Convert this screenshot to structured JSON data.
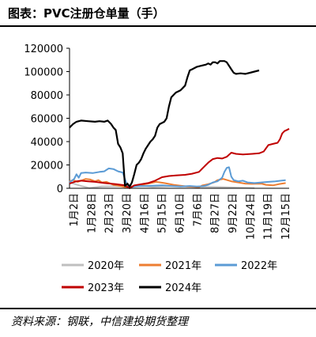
{
  "header": {
    "title": "图表：PVC注册仓单量（手）"
  },
  "footer": {
    "source": "资料来源：钢联，中信建投期货整理"
  },
  "chart_data": {
    "type": "line",
    "title": "图表：PVC注册仓单量（手）",
    "ylim": [
      0,
      120000
    ],
    "yticks": [
      0,
      20000,
      40000,
      60000,
      80000,
      100000,
      120000
    ],
    "x_ticks": [
      "1月2日",
      "1月28日",
      "2月23日",
      "3月20日",
      "4月16日",
      "5月15日",
      "6月10日",
      "7月6日",
      "8月27日",
      "9月22日",
      "10月24日",
      "11月19日",
      "12月15日"
    ],
    "grid": false,
    "legend_position": "bottom",
    "series": [
      {
        "name": "2020年",
        "color": "#bfbfbf",
        "points": [
          [
            0,
            5000
          ],
          [
            5,
            3500
          ],
          [
            10,
            2000
          ],
          [
            14,
            1000
          ],
          [
            17,
            200
          ],
          [
            20,
            600
          ],
          [
            28,
            1500
          ],
          [
            40,
            1800
          ],
          [
            55,
            1500
          ],
          [
            65,
            1800
          ],
          [
            72,
            1200
          ],
          [
            80,
            1500
          ],
          [
            90,
            2000
          ],
          [
            100,
            1500
          ],
          [
            115,
            1200
          ],
          [
            130,
            1000
          ],
          [
            148,
            500
          ],
          [
            160,
            200
          ]
        ]
      },
      {
        "name": "2021年",
        "color": "#ed7d31",
        "points": [
          [
            0,
            6000
          ],
          [
            3,
            7000
          ],
          [
            7,
            5500
          ],
          [
            10,
            6500
          ],
          [
            14,
            8000
          ],
          [
            18,
            7500
          ],
          [
            22,
            6000
          ],
          [
            25,
            7000
          ],
          [
            28,
            5000
          ],
          [
            32,
            5500
          ],
          [
            38,
            3000
          ],
          [
            44,
            2000
          ],
          [
            48,
            1000
          ],
          [
            50,
            300
          ],
          [
            54,
            1500
          ],
          [
            60,
            2500
          ],
          [
            68,
            4000
          ],
          [
            75,
            5500
          ],
          [
            82,
            4500
          ],
          [
            90,
            3000
          ],
          [
            96,
            2200
          ],
          [
            102,
            1500
          ],
          [
            108,
            1200
          ],
          [
            112,
            900
          ],
          [
            115,
            2500
          ],
          [
            120,
            3500
          ],
          [
            125,
            5000
          ],
          [
            128,
            7000
          ],
          [
            133,
            8000
          ],
          [
            140,
            6000
          ],
          [
            146,
            5000
          ],
          [
            152,
            4000
          ],
          [
            158,
            3800
          ],
          [
            166,
            4000
          ],
          [
            170,
            3000
          ],
          [
            176,
            2500
          ],
          [
            181,
            3500
          ],
          [
            187,
            4500
          ]
        ]
      },
      {
        "name": "2022年",
        "color": "#5b9bd5",
        "points": [
          [
            0,
            5000
          ],
          [
            4,
            8000
          ],
          [
            6,
            12000
          ],
          [
            8,
            9000
          ],
          [
            10,
            13000
          ],
          [
            14,
            13500
          ],
          [
            20,
            13000
          ],
          [
            26,
            14000
          ],
          [
            30,
            14500
          ],
          [
            34,
            17000
          ],
          [
            38,
            16500
          ],
          [
            42,
            14500
          ],
          [
            46,
            13500
          ],
          [
            49,
            5000
          ],
          [
            52,
            800
          ],
          [
            56,
            1500
          ],
          [
            60,
            2000
          ],
          [
            66,
            2000
          ],
          [
            72,
            2200
          ],
          [
            80,
            2500
          ],
          [
            88,
            2000
          ],
          [
            96,
            1500
          ],
          [
            104,
            2000
          ],
          [
            110,
            1500
          ],
          [
            116,
            1800
          ],
          [
            120,
            3000
          ],
          [
            124,
            5000
          ],
          [
            128,
            6000
          ],
          [
            132,
            9000
          ],
          [
            134,
            14000
          ],
          [
            136,
            17500
          ],
          [
            138,
            18000
          ],
          [
            140,
            10000
          ],
          [
            142,
            7000
          ],
          [
            146,
            6000
          ],
          [
            150,
            6500
          ],
          [
            154,
            5000
          ],
          [
            160,
            4500
          ],
          [
            166,
            5000
          ],
          [
            172,
            5500
          ],
          [
            178,
            6000
          ],
          [
            183,
            6500
          ],
          [
            187,
            7000
          ]
        ]
      },
      {
        "name": "2023年",
        "color": "#c00000",
        "points": [
          [
            0,
            4000
          ],
          [
            3,
            5000
          ],
          [
            6,
            6000
          ],
          [
            10,
            6500
          ],
          [
            16,
            6000
          ],
          [
            22,
            5500
          ],
          [
            30,
            4500
          ],
          [
            40,
            3500
          ],
          [
            48,
            2500
          ],
          [
            52,
            0
          ],
          [
            56,
            2500
          ],
          [
            62,
            3500
          ],
          [
            68,
            4500
          ],
          [
            74,
            6500
          ],
          [
            80,
            9500
          ],
          [
            86,
            10500
          ],
          [
            92,
            11000
          ],
          [
            100,
            11500
          ],
          [
            106,
            12500
          ],
          [
            112,
            14000
          ],
          [
            116,
            18000
          ],
          [
            120,
            22000
          ],
          [
            124,
            25000
          ],
          [
            128,
            26000
          ],
          [
            132,
            25500
          ],
          [
            136,
            27000
          ],
          [
            140,
            30500
          ],
          [
            144,
            29500
          ],
          [
            150,
            29000
          ],
          [
            158,
            29500
          ],
          [
            164,
            30000
          ],
          [
            168,
            31500
          ],
          [
            172,
            37000
          ],
          [
            176,
            38000
          ],
          [
            180,
            39000
          ],
          [
            182,
            42000
          ],
          [
            184,
            47000
          ],
          [
            186,
            49000
          ],
          [
            188,
            50000
          ],
          [
            190,
            51000
          ]
        ]
      },
      {
        "name": "2024年",
        "color": "#000000",
        "points": [
          [
            0,
            52000
          ],
          [
            3,
            55000
          ],
          [
            6,
            57000
          ],
          [
            10,
            58000
          ],
          [
            16,
            57500
          ],
          [
            22,
            57000
          ],
          [
            26,
            57500
          ],
          [
            30,
            57000
          ],
          [
            33,
            58000
          ],
          [
            36,
            55000
          ],
          [
            38,
            52000
          ],
          [
            40,
            50000
          ],
          [
            42,
            38000
          ],
          [
            44,
            35000
          ],
          [
            46,
            30000
          ],
          [
            48,
            2000
          ],
          [
            50,
            4000
          ],
          [
            52,
            1500
          ],
          [
            54,
            5000
          ],
          [
            56,
            12000
          ],
          [
            58,
            20000
          ],
          [
            60,
            22000
          ],
          [
            62,
            25000
          ],
          [
            64,
            30000
          ],
          [
            66,
            34000
          ],
          [
            68,
            37000
          ],
          [
            70,
            40000
          ],
          [
            72,
            42000
          ],
          [
            74,
            45000
          ],
          [
            76,
            52000
          ],
          [
            78,
            55000
          ],
          [
            80,
            56000
          ],
          [
            82,
            57000
          ],
          [
            84,
            60000
          ],
          [
            86,
            70000
          ],
          [
            88,
            78000
          ],
          [
            90,
            80000
          ],
          [
            92,
            82000
          ],
          [
            94,
            83000
          ],
          [
            96,
            84000
          ],
          [
            98,
            86000
          ],
          [
            100,
            88000
          ],
          [
            102,
            95000
          ],
          [
            104,
            101000
          ],
          [
            106,
            102000
          ],
          [
            110,
            104000
          ],
          [
            114,
            105000
          ],
          [
            118,
            106000
          ],
          [
            120,
            107000
          ],
          [
            122,
            106000
          ],
          [
            124,
            108000
          ],
          [
            126,
            108000
          ],
          [
            128,
            107000
          ],
          [
            130,
            109000
          ],
          [
            134,
            109000
          ],
          [
            136,
            108000
          ],
          [
            138,
            105000
          ],
          [
            140,
            102000
          ],
          [
            142,
            99000
          ],
          [
            144,
            98000
          ],
          [
            148,
            98500
          ],
          [
            152,
            98000
          ],
          [
            156,
            99000
          ],
          [
            160,
            100000
          ],
          [
            164,
            101000
          ]
        ]
      }
    ]
  }
}
